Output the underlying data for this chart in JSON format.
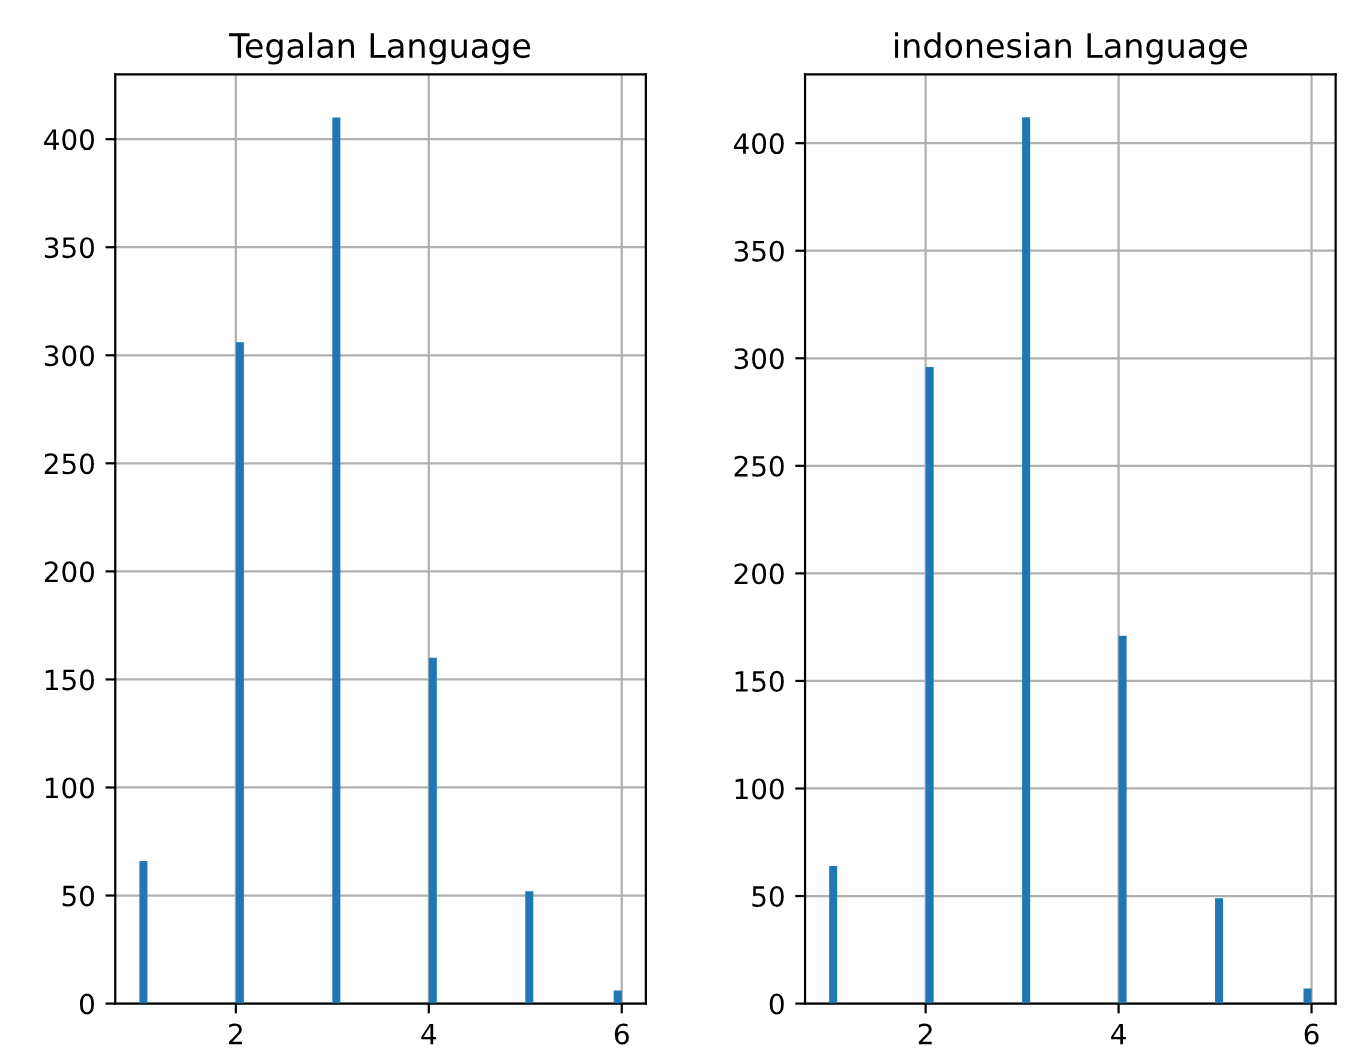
{
  "chart_data": [
    {
      "type": "histogram",
      "title": "Tegalan Language",
      "color": "#1f77b4",
      "bins": [
        1,
        1.0833,
        1.1667,
        1.25,
        1.3333,
        1.4167,
        1.5,
        1.5833,
        1.6667,
        1.75,
        1.8333,
        1.9167,
        2,
        2.0833,
        2.1667,
        2.25,
        2.3333,
        2.4167,
        2.5,
        2.5833,
        2.6667,
        2.75,
        2.8333,
        2.9167,
        3,
        3.0833,
        3.1667,
        3.25,
        3.3333,
        3.4167,
        3.5,
        3.5833,
        3.6667,
        3.75,
        3.8333,
        3.9167,
        4,
        4.0833,
        4.1667,
        4.25,
        4.3333,
        4.4167,
        4.5,
        4.5833,
        4.6667,
        4.75,
        4.8333,
        4.9167,
        5,
        5.0833,
        5.1667,
        5.25,
        5.3333,
        5.4167,
        5.5,
        5.5833,
        5.6667,
        5.75,
        5.8333,
        5.9167,
        6
      ],
      "values": [
        66,
        0,
        0,
        0,
        0,
        0,
        0,
        0,
        0,
        0,
        0,
        0,
        306,
        0,
        0,
        0,
        0,
        0,
        0,
        0,
        0,
        0,
        0,
        0,
        410,
        0,
        0,
        0,
        0,
        0,
        0,
        0,
        0,
        0,
        0,
        0,
        160,
        0,
        0,
        0,
        0,
        0,
        0,
        0,
        0,
        0,
        0,
        0,
        52,
        0,
        0,
        0,
        0,
        0,
        0,
        0,
        0,
        0,
        0,
        6
      ],
      "xlim": [
        0.75,
        6.25
      ],
      "xticks": [
        2,
        4,
        6
      ],
      "ylim": [
        0,
        430
      ],
      "yticks": [
        0,
        50,
        100,
        150,
        200,
        250,
        300,
        350,
        400
      ],
      "grid": true
    },
    {
      "type": "histogram",
      "title": "indonesian Language",
      "color": "#1f77b4",
      "bins": [
        1,
        1.0833,
        1.1667,
        1.25,
        1.3333,
        1.4167,
        1.5,
        1.5833,
        1.6667,
        1.75,
        1.8333,
        1.9167,
        2,
        2.0833,
        2.1667,
        2.25,
        2.3333,
        2.4167,
        2.5,
        2.5833,
        2.6667,
        2.75,
        2.8333,
        2.9167,
        3,
        3.0833,
        3.1667,
        3.25,
        3.3333,
        3.4167,
        3.5,
        3.5833,
        3.6667,
        3.75,
        3.8333,
        3.9167,
        4,
        4.0833,
        4.1667,
        4.25,
        4.3333,
        4.4167,
        4.5,
        4.5833,
        4.6667,
        4.75,
        4.8333,
        4.9167,
        5,
        5.0833,
        5.1667,
        5.25,
        5.3333,
        5.4167,
        5.5,
        5.5833,
        5.6667,
        5.75,
        5.8333,
        5.9167,
        6
      ],
      "values": [
        64,
        0,
        0,
        0,
        0,
        0,
        0,
        0,
        0,
        0,
        0,
        0,
        296,
        0,
        0,
        0,
        0,
        0,
        0,
        0,
        0,
        0,
        0,
        0,
        412,
        0,
        0,
        0,
        0,
        0,
        0,
        0,
        0,
        0,
        0,
        0,
        171,
        0,
        0,
        0,
        0,
        0,
        0,
        0,
        0,
        0,
        0,
        0,
        49,
        0,
        0,
        0,
        0,
        0,
        0,
        0,
        0,
        0,
        0,
        7
      ],
      "xlim": [
        0.75,
        6.25
      ],
      "xticks": [
        2,
        4,
        6
      ],
      "ylim": [
        0,
        432
      ],
      "yticks": [
        0,
        50,
        100,
        150,
        200,
        250,
        300,
        350,
        400
      ],
      "grid": true
    }
  ]
}
